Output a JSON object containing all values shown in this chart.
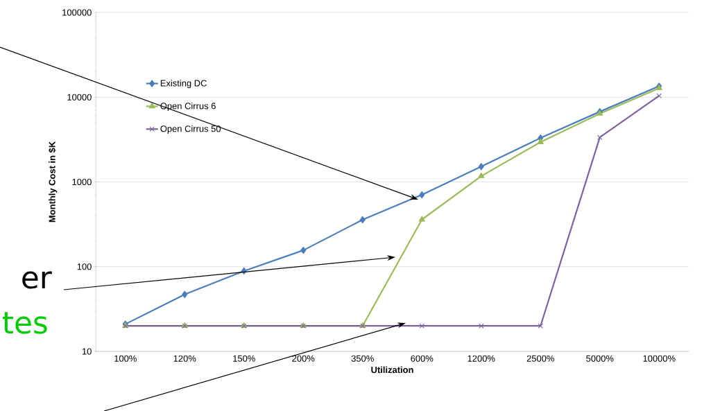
{
  "chart_data": {
    "type": "line",
    "xlabel": "Utilization",
    "ylabel": "Monthly Cost in $K",
    "categories": [
      "100%",
      "120%",
      "150%",
      "200%",
      "350%",
      "600%",
      "1200%",
      "2500%",
      "5000%",
      "10000%"
    ],
    "series": [
      {
        "name": "Existing DC",
        "color": "#4a7ebb",
        "marker": "diamond",
        "values": [
          21,
          47,
          89,
          156,
          358,
          705,
          1520,
          3300,
          6750,
          13500
        ]
      },
      {
        "name": "Open Cirrus 6",
        "color": "#9bbb59",
        "marker": "triangle",
        "values": [
          20,
          20,
          20,
          20,
          20,
          360,
          1170,
          2950,
          6400,
          12800
        ]
      },
      {
        "name": "Open Cirrus 50",
        "color": "#7d60a0",
        "marker": "cross",
        "values": [
          20,
          20,
          20,
          20,
          20,
          20,
          20,
          20,
          3360,
          10400
        ]
      }
    ],
    "log": "y",
    "ylim": [
      10,
      100000
    ],
    "yticks": [
      10,
      100,
      1000,
      10000,
      100000
    ],
    "grid": "y",
    "legend": "top left",
    "annotations": [
      "er",
      "tes"
    ]
  }
}
